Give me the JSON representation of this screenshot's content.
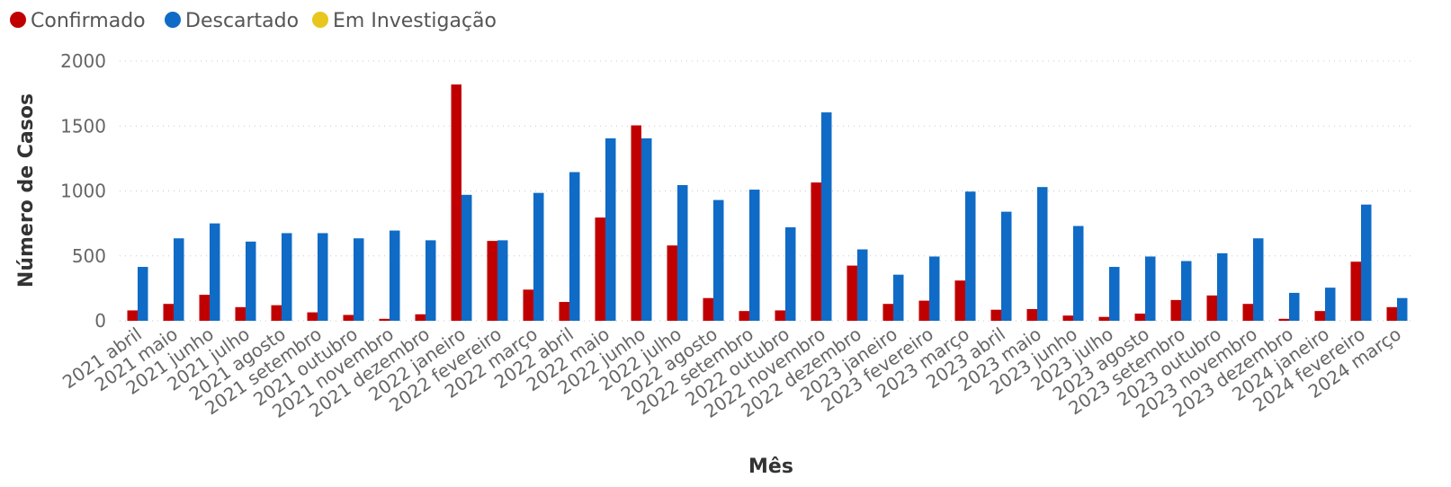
{
  "chart_data": {
    "type": "bar",
    "xlabel": "Mês",
    "ylabel": "Número de Casos",
    "ylim": [
      0,
      2000
    ],
    "yticks": [
      0,
      500,
      1000,
      1500,
      2000
    ],
    "grid": true,
    "legend_position": "top-left",
    "categories": [
      "2021 abril",
      "2021 maio",
      "2021 junho",
      "2021 julho",
      "2021 agosto",
      "2021 setembro",
      "2021 outubro",
      "2021 novembro",
      "2021 dezembro",
      "2022 janeiro",
      "2022 fevereiro",
      "2022 março",
      "2022 abril",
      "2022 maio",
      "2022 junho",
      "2022 julho",
      "2022 agosto",
      "2022 setembro",
      "2022 outubro",
      "2022 novembro",
      "2022 dezembro",
      "2023 janeiro",
      "2023 fevereiro",
      "2023 março",
      "2023 abril",
      "2023 maio",
      "2023 junho",
      "2023 julho",
      "2023 agosto",
      "2023 setembro",
      "2023 outubro",
      "2023 novembro",
      "2023 dezembro",
      "2024 janeiro",
      "2024 fevereiro",
      "2024 março"
    ],
    "series": [
      {
        "name": "Confirmado",
        "color": "#C00000",
        "values": [
          80,
          130,
          200,
          105,
          120,
          65,
          45,
          15,
          50,
          1820,
          615,
          240,
          145,
          795,
          1505,
          580,
          175,
          75,
          80,
          1065,
          425,
          130,
          155,
          310,
          85,
          90,
          40,
          30,
          55,
          160,
          195,
          130,
          15,
          75,
          455,
          105
        ]
      },
      {
        "name": "Descartado",
        "color": "#0F6BC6",
        "values": [
          415,
          635,
          750,
          610,
          675,
          675,
          635,
          695,
          620,
          970,
          620,
          985,
          1145,
          1405,
          1405,
          1045,
          930,
          1010,
          720,
          1605,
          550,
          355,
          495,
          995,
          840,
          1030,
          730,
          415,
          495,
          460,
          520,
          635,
          215,
          255,
          895,
          175
        ]
      },
      {
        "name": "Em Investigação",
        "color": "#E8C61E",
        "values": [
          0,
          0,
          0,
          0,
          0,
          0,
          0,
          0,
          0,
          0,
          0,
          0,
          0,
          0,
          0,
          0,
          0,
          0,
          0,
          0,
          0,
          0,
          0,
          0,
          0,
          0,
          0,
          0,
          0,
          0,
          0,
          0,
          0,
          0,
          0,
          0
        ]
      }
    ]
  }
}
